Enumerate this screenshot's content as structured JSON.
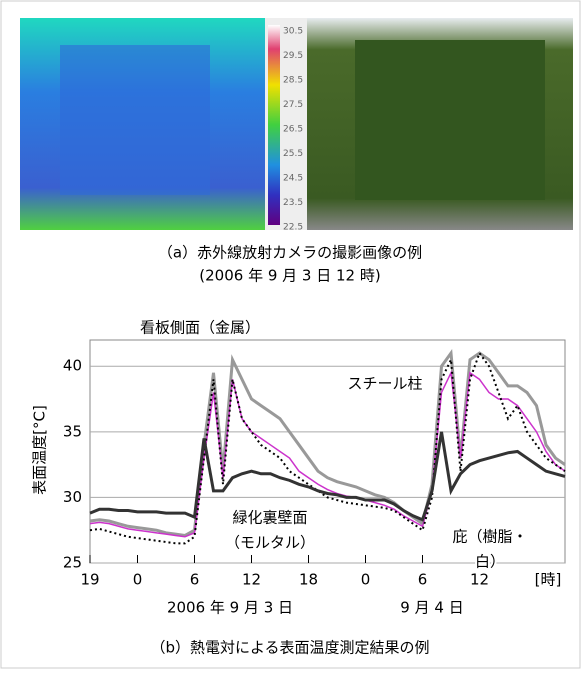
{
  "figure_a": {
    "colorbar_labels": [
      30.5,
      29.5,
      28.5,
      27.5,
      26.5,
      25.5,
      24.5,
      23.5,
      22.5
    ],
    "caption": "（a）赤外線放射カメラの撮影画像の例",
    "caption_date": "(2006 年 9 月 3 日 12 時)"
  },
  "chart_data": {
    "type": "line",
    "ylabel": "表面温度[°C]",
    "xunit": "[時]",
    "date_labels": [
      "2006 年 9 月 3 日",
      "9 月 4 日"
    ],
    "caption": "（b）熱電対による表面温度測定結果の例",
    "xlim": [
      0,
      50
    ],
    "ylim": [
      25,
      42
    ],
    "yticks": [
      25,
      30,
      35,
      40
    ],
    "grid": true,
    "xticks": [
      {
        "value": 0,
        "label": "19"
      },
      {
        "value": 5,
        "label": "0"
      },
      {
        "value": 11,
        "label": "6"
      },
      {
        "value": 17,
        "label": "12"
      },
      {
        "value": 23,
        "label": "18"
      },
      {
        "value": 29,
        "label": "0"
      },
      {
        "value": 35,
        "label": "6"
      },
      {
        "value": 41,
        "label": "12"
      }
    ],
    "x": [
      0,
      1,
      2,
      3,
      4,
      5,
      6,
      7,
      8,
      9,
      10,
      11,
      12,
      13,
      14,
      15,
      16,
      17,
      18,
      19,
      20,
      21,
      22,
      23,
      24,
      25,
      26,
      27,
      28,
      29,
      30,
      31,
      32,
      33,
      34,
      35,
      36,
      37,
      38,
      39,
      40,
      41,
      42,
      43,
      44,
      45,
      46,
      47,
      48,
      49,
      50
    ],
    "series": [
      {
        "label": [
          "看板側面（金属）"
        ],
        "color": "#999999",
        "width": 3,
        "dash": "",
        "values": [
          28.2,
          28.3,
          28.2,
          28.0,
          27.8,
          27.7,
          27.6,
          27.5,
          27.3,
          27.2,
          27.1,
          27.5,
          34,
          39.5,
          32,
          40.5,
          39,
          37.5,
          37,
          36.5,
          36,
          35,
          34,
          33,
          32,
          31.5,
          31.2,
          31,
          30.8,
          30.5,
          30.2,
          30,
          29.6,
          29,
          28.5,
          28,
          31,
          40,
          41,
          33,
          40.5,
          41,
          40.5,
          39.5,
          38.5,
          38.5,
          38,
          37,
          34,
          33,
          32.5
        ]
      },
      {
        "label": [
          "スチール柱"
        ],
        "color": "#cc33cc",
        "width": 1.5,
        "dash": "",
        "values": [
          28,
          28.1,
          28,
          27.8,
          27.6,
          27.5,
          27.4,
          27.3,
          27.2,
          27.1,
          27,
          27.3,
          33,
          38,
          31.5,
          39,
          36,
          35,
          34.5,
          34,
          33.5,
          33,
          32,
          31.5,
          31,
          30.6,
          30.3,
          30.1,
          30,
          29.8,
          29.6,
          29.4,
          29.1,
          28.6,
          28.2,
          27.8,
          30.5,
          38,
          39.5,
          33,
          39.5,
          39,
          38,
          37.5,
          37.5,
          37,
          36,
          35,
          33.5,
          32.5,
          32
        ]
      },
      {
        "label": [
          "庇（樹脂・",
          "白）"
        ],
        "color": "#000000",
        "width": 2,
        "dash": "2 3",
        "values": [
          27.5,
          27.6,
          27.4,
          27.2,
          27,
          26.9,
          26.8,
          26.7,
          26.6,
          26.5,
          26.5,
          27,
          33,
          39,
          31,
          39,
          36,
          35,
          34,
          33.5,
          33,
          32,
          31.5,
          31,
          30.5,
          30,
          29.8,
          29.6,
          29.5,
          29.4,
          29.3,
          29.2,
          29,
          28.5,
          28,
          27.5,
          30,
          39,
          40.5,
          32,
          39,
          41,
          40,
          38,
          36,
          37,
          35,
          34,
          33,
          32.5,
          32
        ]
      },
      {
        "label": [
          "緑化裏壁面",
          "（モルタル）"
        ],
        "color": "#333333",
        "width": 3,
        "dash": "",
        "values": [
          28.8,
          29.1,
          29.1,
          29,
          29,
          28.9,
          28.9,
          28.9,
          28.8,
          28.8,
          28.8,
          28.5,
          34.5,
          30.5,
          30.5,
          31.5,
          31.8,
          32,
          31.8,
          31.8,
          31.5,
          31.3,
          31,
          30.8,
          30.5,
          30.3,
          30.2,
          30,
          30,
          29.8,
          29.8,
          29.8,
          29.5,
          29,
          28.6,
          28.3,
          30.5,
          35,
          30.5,
          31.8,
          32.5,
          32.8,
          33,
          33.2,
          33.4,
          33.5,
          33,
          32.5,
          32,
          31.8,
          31.6
        ]
      }
    ]
  }
}
